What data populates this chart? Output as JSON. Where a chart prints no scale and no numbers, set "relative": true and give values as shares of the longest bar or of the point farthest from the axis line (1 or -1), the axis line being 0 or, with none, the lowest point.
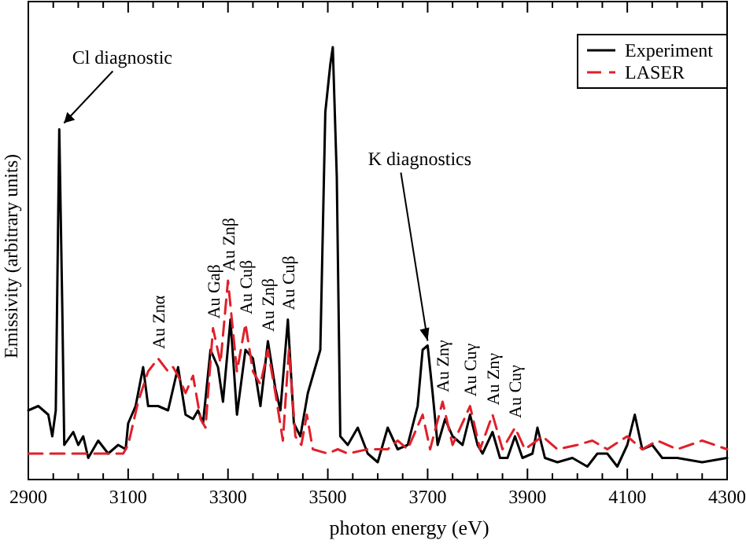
{
  "chart_data": {
    "type": "line",
    "relative": true,
    "xlabel": "photon energy  (eV)",
    "ylabel": "Emissivity (arbitrary units)",
    "xlim": [
      2900,
      4300
    ],
    "xticks": [
      2900,
      {
        "value": 2950,
        "label": null
      },
      {
        "value": 3000,
        "label": null
      },
      {
        "value": 3050,
        "label": null
      },
      3100,
      {
        "value": 3150,
        "label": null
      },
      {
        "value": 3200,
        "label": null
      },
      {
        "value": 3250,
        "label": null
      },
      3300,
      {
        "value": 3350,
        "label": null
      },
      {
        "value": 3400,
        "label": null
      },
      {
        "value": 3450,
        "label": null
      },
      3500,
      {
        "value": 3550,
        "label": null
      },
      {
        "value": 3600,
        "label": null
      },
      {
        "value": 3650,
        "label": null
      },
      3700,
      {
        "value": 3750,
        "label": null
      },
      {
        "value": 3800,
        "label": null
      },
      {
        "value": 3850,
        "label": null
      },
      3900,
      {
        "value": 3950,
        "label": null
      },
      {
        "value": 4000,
        "label": null
      },
      {
        "value": 4050,
        "label": null
      },
      4100,
      {
        "value": 4150,
        "label": null
      },
      {
        "value": 4200,
        "label": null
      },
      {
        "value": 4250,
        "label": null
      },
      4300
    ],
    "legend": "top right",
    "series": [
      {
        "name": "Experiment",
        "color": "#000000",
        "line_style": "solid",
        "x": [
          2900,
          2920,
          2940,
          2948,
          2955,
          2962,
          2968,
          2972,
          2990,
          3000,
          3010,
          3020,
          3040,
          3060,
          3080,
          3095,
          3100,
          3115,
          3130,
          3140,
          3160,
          3180,
          3200,
          3215,
          3230,
          3240,
          3250,
          3265,
          3280,
          3290,
          3305,
          3318,
          3335,
          3350,
          3365,
          3380,
          3395,
          3405,
          3420,
          3432,
          3445,
          3460,
          3475,
          3485,
          3495,
          3505,
          3510,
          3518,
          3525,
          3540,
          3560,
          3580,
          3600,
          3620,
          3640,
          3660,
          3680,
          3690,
          3700,
          3710,
          3720,
          3735,
          3750,
          3770,
          3785,
          3800,
          3810,
          3830,
          3845,
          3860,
          3875,
          3890,
          3910,
          3920,
          3935,
          3960,
          3990,
          4020,
          4040,
          4060,
          4080,
          4100,
          4115,
          4130,
          4150,
          4170,
          4200,
          4250,
          4300
        ],
        "values": [
          0.16,
          0.17,
          0.15,
          0.1,
          0.16,
          0.81,
          0.4,
          0.08,
          0.11,
          0.08,
          0.1,
          0.05,
          0.09,
          0.06,
          0.08,
          0.07,
          0.13,
          0.17,
          0.26,
          0.17,
          0.17,
          0.16,
          0.26,
          0.15,
          0.14,
          0.16,
          0.13,
          0.3,
          0.26,
          0.18,
          0.37,
          0.15,
          0.3,
          0.28,
          0.17,
          0.32,
          0.21,
          0.16,
          0.37,
          0.13,
          0.1,
          0.2,
          0.26,
          0.3,
          0.85,
          0.96,
          1,
          0.7,
          0.1,
          0.08,
          0.12,
          0.06,
          0.04,
          0.12,
          0.07,
          0.08,
          0.17,
          0.3,
          0.31,
          0.2,
          0.08,
          0.14,
          0.1,
          0.08,
          0.15,
          0.08,
          0.06,
          0.11,
          0.05,
          0.05,
          0.1,
          0.05,
          0.06,
          0.12,
          0.05,
          0.04,
          0.05,
          0.03,
          0.06,
          0.06,
          0.03,
          0.08,
          0.15,
          0.07,
          0.08,
          0.05,
          0.05,
          0.04,
          0.05
        ]
      },
      {
        "name": "LASER",
        "color": "#e0202a",
        "line_style": "dashed",
        "x": [
          2900,
          3000,
          3090,
          3100,
          3120,
          3140,
          3160,
          3180,
          3190,
          3200,
          3215,
          3230,
          3245,
          3255,
          3270,
          3285,
          3300,
          3318,
          3335,
          3350,
          3365,
          3380,
          3395,
          3410,
          3422,
          3435,
          3447,
          3458,
          3470,
          3500,
          3520,
          3540,
          3580,
          3620,
          3640,
          3660,
          3690,
          3705,
          3730,
          3750,
          3785,
          3805,
          3830,
          3850,
          3875,
          3895,
          3930,
          3960,
          4000,
          4030,
          4060,
          4100,
          4130,
          4160,
          4200,
          4250,
          4300
        ],
        "values": [
          0.06,
          0.06,
          0.06,
          0.08,
          0.18,
          0.25,
          0.28,
          0.25,
          0.26,
          0.24,
          0.2,
          0.24,
          0.14,
          0.12,
          0.35,
          0.27,
          0.46,
          0.25,
          0.36,
          0.25,
          0.22,
          0.3,
          0.2,
          0.09,
          0.3,
          0.1,
          0.08,
          0.15,
          0.07,
          0.06,
          0.07,
          0.06,
          0.07,
          0.07,
          0.09,
          0.07,
          0.15,
          0.07,
          0.18,
          0.08,
          0.17,
          0.07,
          0.15,
          0.07,
          0.12,
          0.07,
          0.1,
          0.07,
          0.08,
          0.09,
          0.07,
          0.1,
          0.07,
          0.09,
          0.07,
          0.09,
          0.07
        ]
      }
    ],
    "annotations": [
      {
        "text": "Cl diagnostic",
        "x": 2962,
        "y": 0.81
      },
      {
        "text": "K diagnostics",
        "x": 3700,
        "y": 0.31
      },
      {
        "text": "Au Znα",
        "x": 3160,
        "y": 0.28
      },
      {
        "text": "Au Gaβ",
        "x": 3270,
        "y": 0.35
      },
      {
        "text": "Au Znβ",
        "x": 3300,
        "y": 0.46
      },
      {
        "text": "Au Cuβ",
        "x": 3335,
        "y": 0.36
      },
      {
        "text": "Au Znβ",
        "x": 3380,
        "y": 0.32
      },
      {
        "text": "Au Cuβ",
        "x": 3420,
        "y": 0.37
      },
      {
        "text": "Au Znγ",
        "x": 3730,
        "y": 0.18
      },
      {
        "text": "Au Cuγ",
        "x": 3785,
        "y": 0.17
      },
      {
        "text": "Au Znγ",
        "x": 3830,
        "y": 0.15
      },
      {
        "text": "Au Cuγ",
        "x": 3875,
        "y": 0.12
      }
    ]
  }
}
